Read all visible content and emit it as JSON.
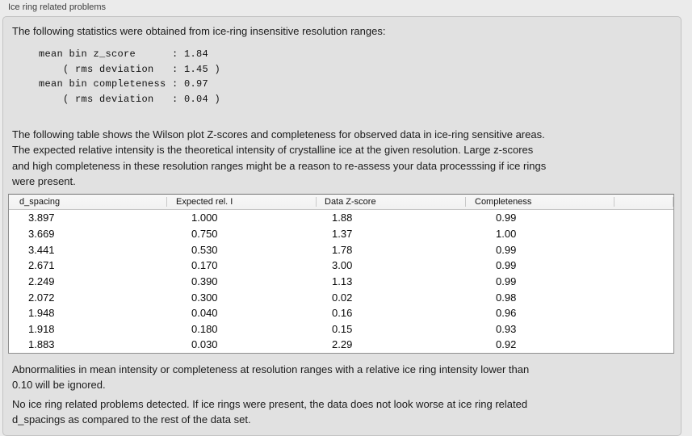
{
  "panel": {
    "title": "Ice ring related problems",
    "intro": "The following statistics were obtained from ice-ring insensitive resolution ranges:",
    "stats_block": "mean bin z_score      : 1.84\n    ( rms deviation   : 1.45 )\nmean bin completeness : 0.97\n    ( rms deviation   : 0.04 )",
    "stats": {
      "mean_bin_z_score": "1.84",
      "z_score_rms_deviation": "1.45",
      "mean_bin_completeness": "0.97",
      "completeness_rms_deviation": "0.04"
    },
    "table_description": "The following table shows the Wilson plot Z-scores and completeness for observed data in ice-ring sensitive areas.\nThe expected relative intensity is the theoretical intensity of crystalline ice at the given resolution. Large z-scores\nand high completeness in these resolution ranges might be a reason to re-assess your data processsing if ice rings\nwere present.",
    "table": {
      "columns": [
        "d_spacing",
        "Expected rel. I",
        "Data Z-score",
        "Completeness"
      ],
      "rows": [
        [
          "3.897",
          "1.000",
          "1.88",
          "0.99"
        ],
        [
          "3.669",
          "0.750",
          "1.37",
          "1.00"
        ],
        [
          "3.441",
          "0.530",
          "1.78",
          "0.99"
        ],
        [
          "2.671",
          "0.170",
          "3.00",
          "0.99"
        ],
        [
          "2.249",
          "0.390",
          "1.13",
          "0.99"
        ],
        [
          "2.072",
          "0.300",
          "0.02",
          "0.98"
        ],
        [
          "1.948",
          "0.040",
          "0.16",
          "0.96"
        ],
        [
          "1.918",
          "0.180",
          "0.15",
          "0.93"
        ],
        [
          "1.883",
          "0.030",
          "2.29",
          "0.92"
        ]
      ]
    },
    "ignore_note": "Abnormalities in mean intensity or completeness at resolution ranges with a relative ice ring intensity lower than\n0.10 will be ignored.",
    "conclusion": "No ice ring related problems detected. If ice rings were present, the data does not look worse at ice ring related\nd_spacings as compared to the rest of the data set."
  },
  "colors": {
    "background": "#ebebeb",
    "groupbox_background": "#e1e1e1",
    "table_background": "#ffffff",
    "text": "#1b1b1b"
  }
}
